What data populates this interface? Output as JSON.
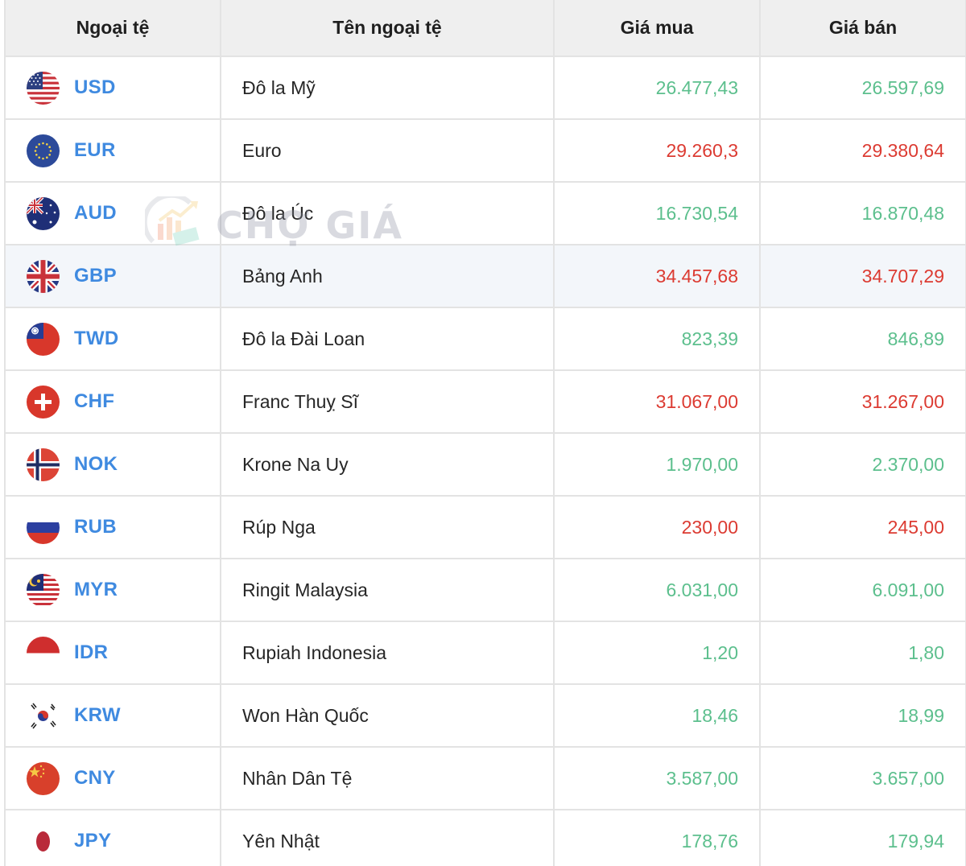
{
  "table": {
    "headers": {
      "code": "Ngoại tệ",
      "name": "Tên ngoại tệ",
      "buy": "Giá mua",
      "sell": "Giá bán"
    },
    "rows": [
      {
        "code": "USD",
        "name": "Đô la Mỹ",
        "buy": "26.477,43",
        "sell": "26.597,69",
        "trend": "up",
        "flag": "us-flag-icon"
      },
      {
        "code": "EUR",
        "name": "Euro",
        "buy": "29.260,3",
        "sell": "29.380,64",
        "trend": "down",
        "flag": "eu-flag-icon"
      },
      {
        "code": "AUD",
        "name": "Đô la Úc",
        "buy": "16.730,54",
        "sell": "16.870,48",
        "trend": "up",
        "flag": "au-flag-icon"
      },
      {
        "code": "GBP",
        "name": "Bảng Anh",
        "buy": "34.457,68",
        "sell": "34.707,29",
        "trend": "down",
        "flag": "gb-flag-icon",
        "highlighted": true
      },
      {
        "code": "TWD",
        "name": "Đô la Đài Loan",
        "buy": "823,39",
        "sell": "846,89",
        "trend": "up",
        "flag": "tw-flag-icon"
      },
      {
        "code": "CHF",
        "name": "Franc Thuỵ Sĩ",
        "buy": "31.067,00",
        "sell": "31.267,00",
        "trend": "down",
        "flag": "ch-flag-icon"
      },
      {
        "code": "NOK",
        "name": "Krone Na Uy",
        "buy": "1.970,00",
        "sell": "2.370,00",
        "trend": "up",
        "flag": "no-flag-icon"
      },
      {
        "code": "RUB",
        "name": "Rúp Nga",
        "buy": "230,00",
        "sell": "245,00",
        "trend": "down",
        "flag": "ru-flag-icon"
      },
      {
        "code": "MYR",
        "name": "Ringit Malaysia",
        "buy": "6.031,00",
        "sell": "6.091,00",
        "trend": "up",
        "flag": "my-flag-icon"
      },
      {
        "code": "IDR",
        "name": "Rupiah Indonesia",
        "buy": "1,20",
        "sell": "1,80",
        "trend": "up",
        "flag": "id-flag-icon"
      },
      {
        "code": "KRW",
        "name": "Won Hàn Quốc",
        "buy": "18,46",
        "sell": "18,99",
        "trend": "up",
        "flag": "kr-flag-icon"
      },
      {
        "code": "CNY",
        "name": "Nhân Dân Tệ",
        "buy": "3.587,00",
        "sell": "3.657,00",
        "trend": "up",
        "flag": "cn-flag-icon"
      },
      {
        "code": "JPY",
        "name": "Yên Nhật",
        "buy": "178,76",
        "sell": "179,94",
        "trend": "up",
        "flag": "jp-flag-icon"
      }
    ]
  },
  "watermark": {
    "text": "CHỢ GIÁ"
  },
  "colors": {
    "code_text": "#3f8ae0",
    "price_up": "#5cbf8d",
    "price_down": "#dc3b32",
    "header_bg": "#efefef",
    "highlight_row_bg": "#f3f6fa",
    "border": "#e3e3e3"
  }
}
